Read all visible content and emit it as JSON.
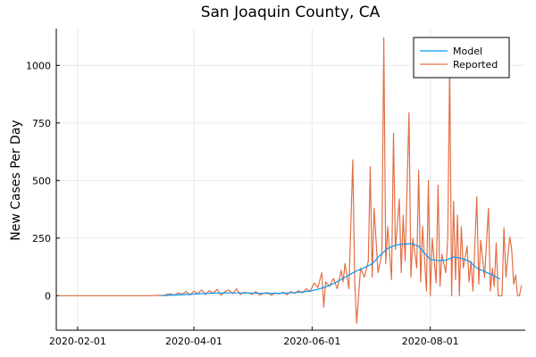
{
  "chart_data": {
    "type": "line",
    "title": "San Joaquin County, CA",
    "xlabel": "",
    "ylabel": "New Cases Per Day",
    "x_axis": {
      "type": "date",
      "range": [
        "2020-01-21",
        "2020-09-19"
      ],
      "ticks": [
        "2020-02-01",
        "2020-04-01",
        "2020-06-01",
        "2020-08-01"
      ]
    },
    "ylim": [
      -150,
      1160
    ],
    "y_ticks": [
      0,
      250,
      500,
      750,
      1000
    ],
    "grid": true,
    "legend": {
      "position": "top-right",
      "entries": [
        "Model",
        "Reported"
      ]
    },
    "series": [
      {
        "name": "Model",
        "color": "#009af9",
        "points": [
          [
            "2020-03-15",
            0
          ],
          [
            "2020-03-22",
            3
          ],
          [
            "2020-03-29",
            6
          ],
          [
            "2020-04-05",
            9
          ],
          [
            "2020-04-12",
            11
          ],
          [
            "2020-04-19",
            12
          ],
          [
            "2020-04-26",
            12
          ],
          [
            "2020-05-03",
            11
          ],
          [
            "2020-05-10",
            10
          ],
          [
            "2020-05-17",
            11
          ],
          [
            "2020-05-24",
            14
          ],
          [
            "2020-05-31",
            20
          ],
          [
            "2020-06-04",
            28
          ],
          [
            "2020-06-08",
            38
          ],
          [
            "2020-06-12",
            52
          ],
          [
            "2020-06-16",
            70
          ],
          [
            "2020-06-20",
            90
          ],
          [
            "2020-06-24",
            108
          ],
          [
            "2020-06-28",
            122
          ],
          [
            "2020-07-02",
            138
          ],
          [
            "2020-07-06",
            175
          ],
          [
            "2020-07-10",
            205
          ],
          [
            "2020-07-14",
            220
          ],
          [
            "2020-07-18",
            224
          ],
          [
            "2020-07-22",
            226
          ],
          [
            "2020-07-26",
            215
          ],
          [
            "2020-07-29",
            185
          ],
          [
            "2020-08-01",
            158
          ],
          [
            "2020-08-05",
            152
          ],
          [
            "2020-08-09",
            154
          ],
          [
            "2020-08-13",
            168
          ],
          [
            "2020-08-17",
            162
          ],
          [
            "2020-08-21",
            150
          ],
          [
            "2020-08-25",
            120
          ],
          [
            "2020-08-29",
            105
          ],
          [
            "2020-09-02",
            90
          ],
          [
            "2020-09-06",
            72
          ]
        ]
      },
      {
        "name": "Reported",
        "color": "#e26f46",
        "points": [
          [
            "2020-01-22",
            0
          ],
          [
            "2020-02-10",
            0
          ],
          [
            "2020-03-01",
            0
          ],
          [
            "2020-03-10",
            0
          ],
          [
            "2020-03-14",
            2
          ],
          [
            "2020-03-16",
            0
          ],
          [
            "2020-03-18",
            5
          ],
          [
            "2020-03-20",
            8
          ],
          [
            "2020-03-22",
            3
          ],
          [
            "2020-03-24",
            12
          ],
          [
            "2020-03-26",
            6
          ],
          [
            "2020-03-28",
            18
          ],
          [
            "2020-03-30",
            4
          ],
          [
            "2020-04-01",
            20
          ],
          [
            "2020-04-03",
            8
          ],
          [
            "2020-04-05",
            25
          ],
          [
            "2020-04-07",
            5
          ],
          [
            "2020-04-09",
            22
          ],
          [
            "2020-04-11",
            10
          ],
          [
            "2020-04-13",
            28
          ],
          [
            "2020-04-15",
            2
          ],
          [
            "2020-04-17",
            18
          ],
          [
            "2020-04-19",
            25
          ],
          [
            "2020-04-21",
            8
          ],
          [
            "2020-04-23",
            30
          ],
          [
            "2020-04-25",
            5
          ],
          [
            "2020-04-27",
            15
          ],
          [
            "2020-04-29",
            12
          ],
          [
            "2020-05-01",
            6
          ],
          [
            "2020-05-03",
            18
          ],
          [
            "2020-05-05",
            3
          ],
          [
            "2020-05-07",
            10
          ],
          [
            "2020-05-09",
            14
          ],
          [
            "2020-05-11",
            2
          ],
          [
            "2020-05-13",
            12
          ],
          [
            "2020-05-15",
            8
          ],
          [
            "2020-05-17",
            15
          ],
          [
            "2020-05-19",
            4
          ],
          [
            "2020-05-21",
            18
          ],
          [
            "2020-05-23",
            10
          ],
          [
            "2020-05-25",
            22
          ],
          [
            "2020-05-27",
            12
          ],
          [
            "2020-05-29",
            30
          ],
          [
            "2020-05-31",
            18
          ],
          [
            "2020-06-02",
            55
          ],
          [
            "2020-06-04",
            35
          ],
          [
            "2020-06-06",
            100
          ],
          [
            "2020-06-07",
            -50
          ],
          [
            "2020-06-08",
            60
          ],
          [
            "2020-06-10",
            40
          ],
          [
            "2020-06-12",
            75
          ],
          [
            "2020-06-14",
            30
          ],
          [
            "2020-06-16",
            110
          ],
          [
            "2020-06-17",
            60
          ],
          [
            "2020-06-18",
            140
          ],
          [
            "2020-06-20",
            30
          ],
          [
            "2020-06-22",
            590
          ],
          [
            "2020-06-23",
            60
          ],
          [
            "2020-06-24",
            -120
          ],
          [
            "2020-06-26",
            120
          ],
          [
            "2020-06-28",
            80
          ],
          [
            "2020-06-30",
            150
          ],
          [
            "2020-07-01",
            560
          ],
          [
            "2020-07-02",
            80
          ],
          [
            "2020-07-03",
            380
          ],
          [
            "2020-07-05",
            100
          ],
          [
            "2020-07-07",
            180
          ],
          [
            "2020-07-08",
            1120
          ],
          [
            "2020-07-09",
            140
          ],
          [
            "2020-07-10",
            300
          ],
          [
            "2020-07-12",
            70
          ],
          [
            "2020-07-13",
            705
          ],
          [
            "2020-07-14",
            200
          ],
          [
            "2020-07-16",
            420
          ],
          [
            "2020-07-17",
            100
          ],
          [
            "2020-07-18",
            350
          ],
          [
            "2020-07-19",
            150
          ],
          [
            "2020-07-21",
            795
          ],
          [
            "2020-07-22",
            80
          ],
          [
            "2020-07-23",
            250
          ],
          [
            "2020-07-25",
            120
          ],
          [
            "2020-07-26",
            545
          ],
          [
            "2020-07-27",
            60
          ],
          [
            "2020-07-28",
            300
          ],
          [
            "2020-07-30",
            20
          ],
          [
            "2020-07-31",
            500
          ],
          [
            "2020-08-01",
            0
          ],
          [
            "2020-08-02",
            250
          ],
          [
            "2020-08-04",
            55
          ],
          [
            "2020-08-05",
            480
          ],
          [
            "2020-08-06",
            40
          ],
          [
            "2020-08-07",
            180
          ],
          [
            "2020-08-09",
            100
          ],
          [
            "2020-08-10",
            250
          ],
          [
            "2020-08-11",
            1005
          ],
          [
            "2020-08-12",
            0
          ],
          [
            "2020-08-13",
            410
          ],
          [
            "2020-08-14",
            70
          ],
          [
            "2020-08-15",
            350
          ],
          [
            "2020-08-16",
            0
          ],
          [
            "2020-08-17",
            300
          ],
          [
            "2020-08-18",
            120
          ],
          [
            "2020-08-20",
            215
          ],
          [
            "2020-08-21",
            60
          ],
          [
            "2020-08-22",
            150
          ],
          [
            "2020-08-23",
            20
          ],
          [
            "2020-08-25",
            430
          ],
          [
            "2020-08-26",
            50
          ],
          [
            "2020-08-27",
            240
          ],
          [
            "2020-08-29",
            80
          ],
          [
            "2020-08-31",
            380
          ],
          [
            "2020-09-01",
            20
          ],
          [
            "2020-09-02",
            120
          ],
          [
            "2020-09-03",
            40
          ],
          [
            "2020-09-04",
            230
          ],
          [
            "2020-09-05",
            0
          ],
          [
            "2020-09-07",
            0
          ],
          [
            "2020-09-08",
            295
          ],
          [
            "2020-09-09",
            80
          ],
          [
            "2020-09-11",
            255
          ],
          [
            "2020-09-12",
            200
          ],
          [
            "2020-09-13",
            50
          ],
          [
            "2020-09-14",
            90
          ],
          [
            "2020-09-15",
            0
          ],
          [
            "2020-09-16",
            0
          ],
          [
            "2020-09-17",
            45
          ]
        ]
      }
    ]
  }
}
